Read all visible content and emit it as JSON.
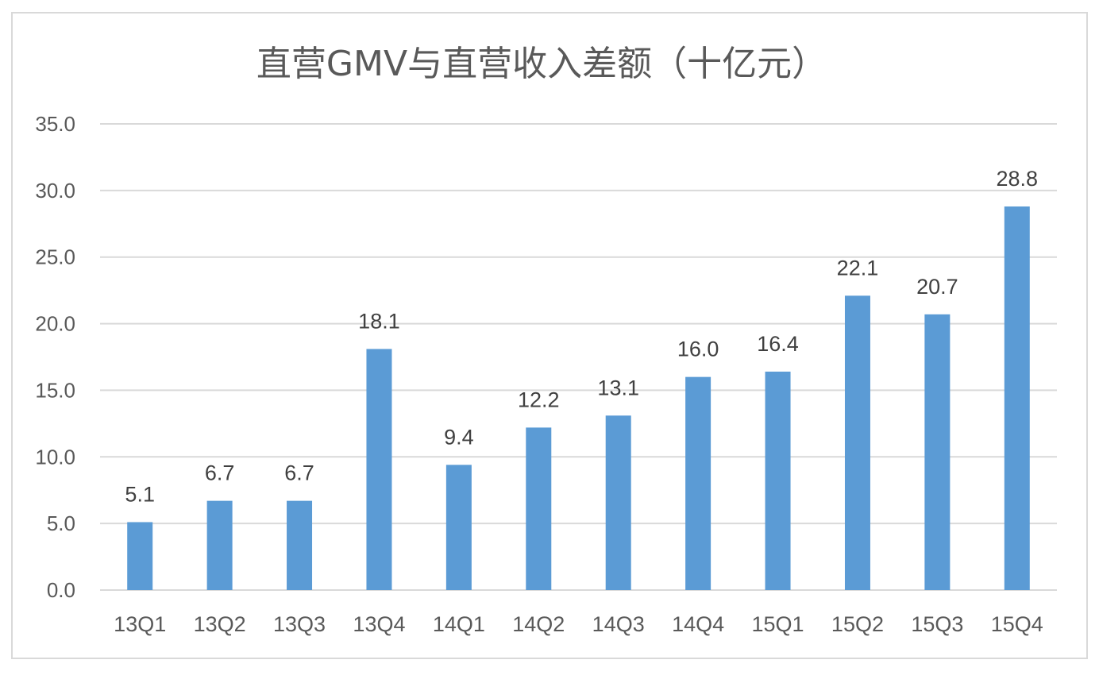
{
  "chart_data": {
    "type": "bar",
    "title": "直营GMV与直营收入差额（十亿元）",
    "categories": [
      "13Q1",
      "13Q2",
      "13Q3",
      "13Q4",
      "14Q1",
      "14Q2",
      "14Q3",
      "14Q4",
      "15Q1",
      "15Q2",
      "15Q3",
      "15Q4"
    ],
    "values": [
      5.1,
      6.7,
      6.7,
      18.1,
      9.4,
      12.2,
      13.1,
      16.0,
      16.4,
      22.1,
      20.7,
      28.8
    ],
    "value_labels": [
      "5.1",
      "6.7",
      "6.7",
      "18.1",
      "9.4",
      "12.2",
      "13.1",
      "16.0",
      "16.4",
      "22.1",
      "20.7",
      "28.8"
    ],
    "y_ticks": [
      "0.0",
      "5.0",
      "10.0",
      "15.0",
      "20.0",
      "25.0",
      "30.0",
      "35.0"
    ],
    "ylim": [
      0,
      35
    ],
    "grid": true,
    "legend": "none",
    "bar_color": "#5b9bd5"
  }
}
